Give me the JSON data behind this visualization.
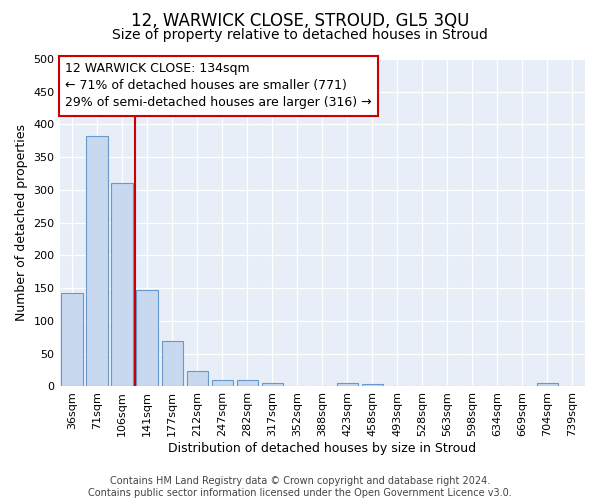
{
  "title": "12, WARWICK CLOSE, STROUD, GL5 3QU",
  "subtitle": "Size of property relative to detached houses in Stroud",
  "xlabel": "Distribution of detached houses by size in Stroud",
  "ylabel": "Number of detached properties",
  "categories": [
    "36sqm",
    "71sqm",
    "106sqm",
    "141sqm",
    "177sqm",
    "212sqm",
    "247sqm",
    "282sqm",
    "317sqm",
    "352sqm",
    "388sqm",
    "423sqm",
    "458sqm",
    "493sqm",
    "528sqm",
    "563sqm",
    "598sqm",
    "634sqm",
    "669sqm",
    "704sqm",
    "739sqm"
  ],
  "values": [
    143,
    383,
    310,
    148,
    70,
    24,
    10,
    10,
    5,
    0,
    0,
    5,
    4,
    0,
    0,
    0,
    0,
    0,
    0,
    5,
    0
  ],
  "bar_color": "#c8d8ee",
  "bar_edge_color": "#6699cc",
  "vline_x_index": 3,
  "vline_color": "#cc0000",
  "annotation_text": "12 WARWICK CLOSE: 134sqm\n← 71% of detached houses are smaller (771)\n29% of semi-detached houses are larger (316) →",
  "annotation_box_color": "#cc0000",
  "ylim": [
    0,
    500
  ],
  "yticks": [
    0,
    50,
    100,
    150,
    200,
    250,
    300,
    350,
    400,
    450,
    500
  ],
  "footnote": "Contains HM Land Registry data © Crown copyright and database right 2024.\nContains public sector information licensed under the Open Government Licence v3.0.",
  "background_color": "#ffffff",
  "plot_bg_color": "#e8eef8",
  "grid_color": "#ffffff",
  "title_fontsize": 12,
  "subtitle_fontsize": 10,
  "axis_label_fontsize": 9,
  "tick_fontsize": 8,
  "annotation_fontsize": 9,
  "footnote_fontsize": 7
}
